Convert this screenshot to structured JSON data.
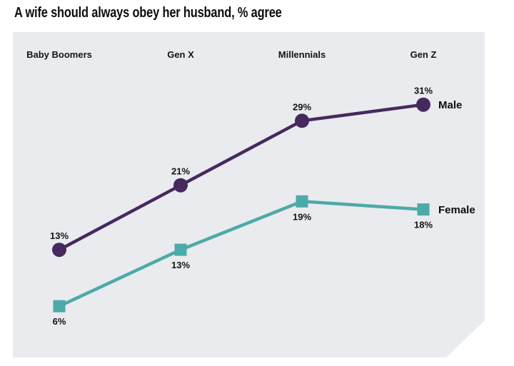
{
  "title": "A wife should always obey her husband, % agree",
  "colors": {
    "male": "#46295f",
    "female": "#4caaa8",
    "panel_background": "#e9ebee",
    "text": "#141414"
  },
  "chart_data": {
    "type": "line",
    "title": "A wife should always obey her husband, % agree",
    "categories": [
      "Baby Boomers",
      "Gen X",
      "Millennials",
      "Gen Z"
    ],
    "series": [
      {
        "name": "Male",
        "values": [
          13,
          21,
          29,
          31
        ],
        "color": "#46295f",
        "marker": "circle",
        "value_label_position": "above"
      },
      {
        "name": "Female",
        "values": [
          6,
          13,
          19,
          18
        ],
        "color": "#4caaa8",
        "marker": "square",
        "value_label_position": "below"
      }
    ],
    "value_suffix": "%",
    "xlabel": "",
    "ylabel": "",
    "grid": false,
    "category_labels_position": "top",
    "legend_position": "right-of-last-point"
  }
}
